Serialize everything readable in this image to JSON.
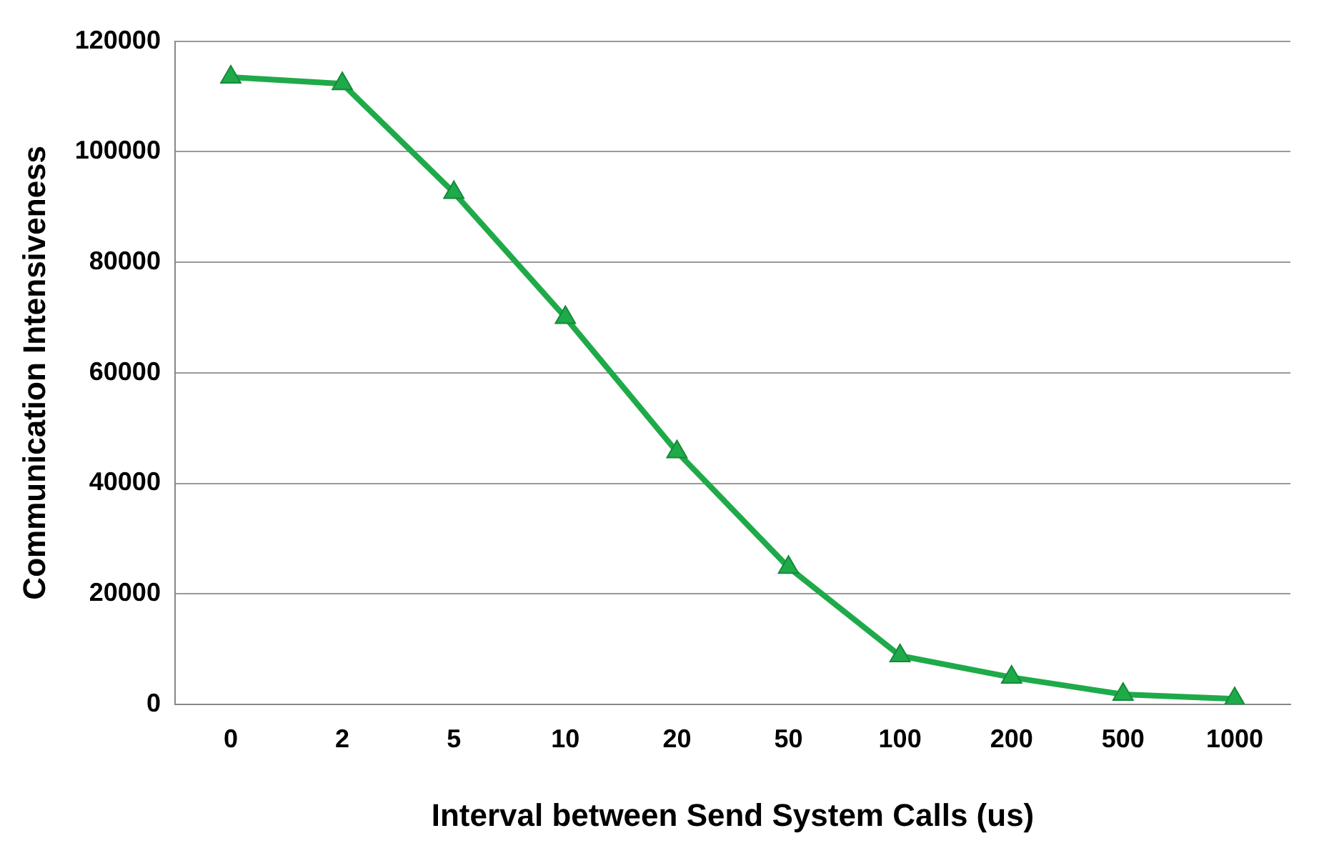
{
  "chart_data": {
    "type": "line",
    "xlabel": "Interval between Send System Calls (us)",
    "ylabel": "Communication Intensiveness",
    "categories": [
      "0",
      "2",
      "5",
      "10",
      "20",
      "50",
      "100",
      "200",
      "500",
      "1000"
    ],
    "series": [
      {
        "color": "#1faa4a",
        "values": [
          113500,
          112300,
          92600,
          70000,
          45700,
          24800,
          8800,
          4900,
          1800,
          1000
        ]
      }
    ],
    "ylim": [
      0,
      120000
    ],
    "yticks": [
      0,
      20000,
      40000,
      60000,
      80000,
      100000,
      120000
    ],
    "grid": "y",
    "legend": false,
    "marker": "triangle",
    "line_style": "solid"
  }
}
